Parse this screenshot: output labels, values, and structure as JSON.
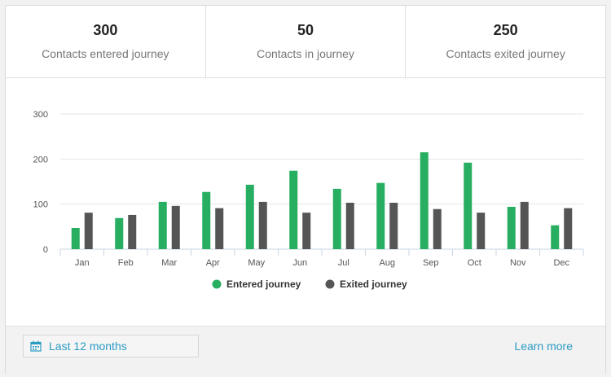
{
  "stats": [
    {
      "value": "300",
      "label": "Contacts entered journey"
    },
    {
      "value": "50",
      "label": "Contacts in journey"
    },
    {
      "value": "250",
      "label": "Contacts exited journey"
    }
  ],
  "chart_data": {
    "type": "bar",
    "categories": [
      "Jan",
      "Feb",
      "Mar",
      "Apr",
      "May",
      "Jun",
      "Jul",
      "Aug",
      "Sep",
      "Oct",
      "Nov",
      "Dec"
    ],
    "series": [
      {
        "name": "Entered journey",
        "color": "#27ae60",
        "values": [
          47,
          69,
          105,
          127,
          143,
          174,
          134,
          147,
          215,
          192,
          94,
          53
        ]
      },
      {
        "name": "Exited journey",
        "color": "#555555",
        "values": [
          81,
          76,
          96,
          91,
          105,
          81,
          103,
          103,
          89,
          81,
          105,
          91
        ]
      }
    ],
    "yticks": [
      0,
      100,
      200,
      300
    ],
    "ylim": [
      0,
      300
    ],
    "grid": true,
    "legend_position": "bottom-center"
  },
  "footer": {
    "range_icon": "calendar-icon",
    "range_label": "Last 12 months",
    "learn_more": "Learn more",
    "accent": "#2a9bc4"
  }
}
